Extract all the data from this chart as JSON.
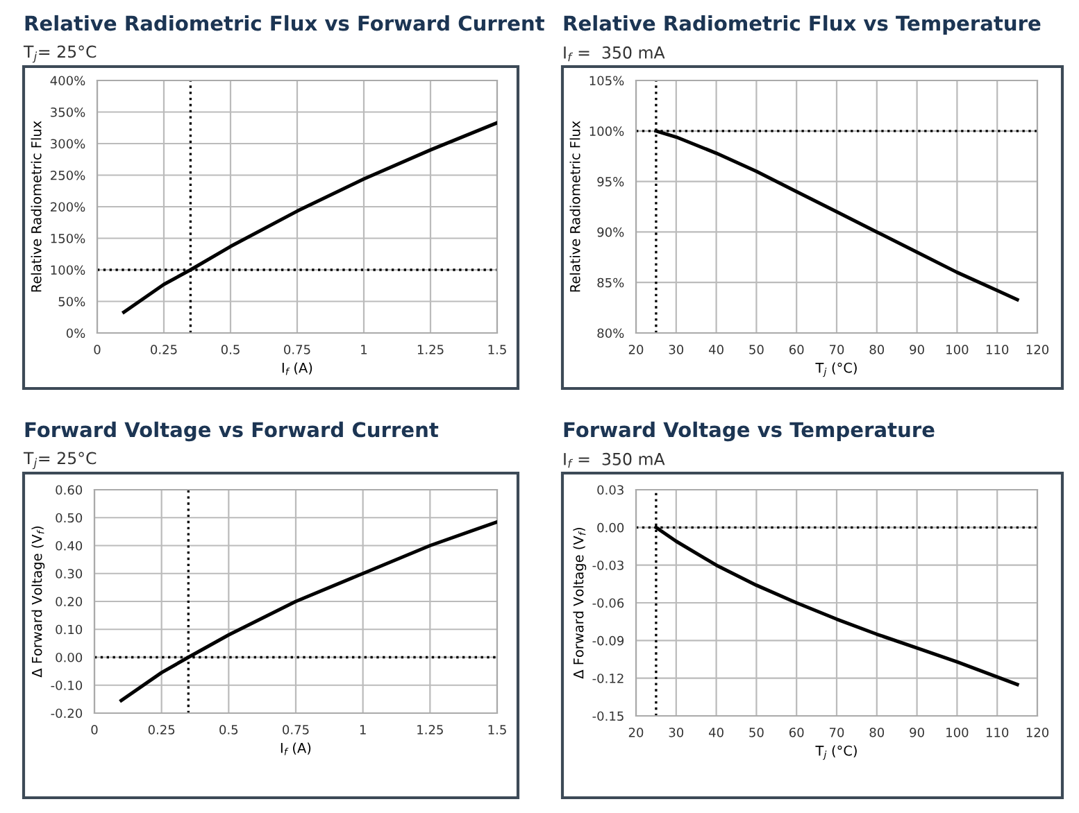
{
  "chart_data": [
    {
      "type": "line",
      "title": "Relative Radiometric Flux vs Forward Current",
      "subtitle": "T$_{j}$= 25°C",
      "xlabel": "I$_{f}$ (A)",
      "ylabel": "Relative Radiometric Flux",
      "x": [
        0.1,
        0.25,
        0.35,
        0.5,
        0.75,
        1.0,
        1.25,
        1.5
      ],
      "series": [
        {
          "color": "#000000",
          "values": [
            33,
            77,
            100,
            137,
            193,
            244,
            290,
            333
          ]
        }
      ],
      "xlim": [
        0,
        1.5
      ],
      "xticks": [
        0,
        0.25,
        0.5,
        0.75,
        1,
        1.25,
        1.5
      ],
      "ylim": [
        0,
        400
      ],
      "yticks": [
        {
          "value": 0,
          "label": "0%"
        },
        {
          "value": 50,
          "label": "50%"
        },
        {
          "value": 100,
          "label": "100%"
        },
        {
          "value": 150,
          "label": "150%"
        },
        {
          "value": 200,
          "label": "200%"
        },
        {
          "value": 250,
          "label": "250%"
        },
        {
          "value": 300,
          "label": "300%"
        },
        {
          "value": 350,
          "label": "350%"
        },
        {
          "value": 400,
          "label": "400%"
        }
      ],
      "ref_lines": [
        {
          "axis": "x",
          "value": 0.35,
          "color": "#000000",
          "line_style": "dotted"
        },
        {
          "axis": "y",
          "value": 100,
          "color": "#000000",
          "line_style": "dotted"
        }
      ],
      "grid": true,
      "legend": false,
      "marker": "none",
      "line_style": "solid"
    },
    {
      "type": "line",
      "title": "Relative Radiometric Flux vs Temperature",
      "subtitle": "I$_{f}$ =  350 mA",
      "xlabel": "T$_{j}$ (°C)",
      "ylabel": "Relative Radiometric Flux",
      "x": [
        25,
        30,
        40,
        50,
        60,
        70,
        80,
        90,
        100,
        110,
        115
      ],
      "series": [
        {
          "color": "#000000",
          "values": [
            100,
            99.4,
            97.8,
            96,
            94,
            92,
            90,
            88,
            86,
            84.2,
            83.3
          ]
        }
      ],
      "xlim": [
        20,
        120
      ],
      "xticks": [
        20,
        30,
        40,
        50,
        60,
        70,
        80,
        90,
        100,
        110,
        120
      ],
      "ylim": [
        80,
        105
      ],
      "yticks": [
        {
          "value": 80,
          "label": "80%"
        },
        {
          "value": 85,
          "label": "85%"
        },
        {
          "value": 90,
          "label": "90%"
        },
        {
          "value": 95,
          "label": "95%"
        },
        {
          "value": 100,
          "label": "100%"
        },
        {
          "value": 105,
          "label": "105%"
        }
      ],
      "ref_lines": [
        {
          "axis": "x",
          "value": 25,
          "color": "#000000",
          "line_style": "dotted"
        },
        {
          "axis": "y",
          "value": 100,
          "color": "#000000",
          "line_style": "dotted"
        }
      ],
      "grid": true,
      "legend": false,
      "marker": "none",
      "line_style": "solid"
    },
    {
      "type": "line",
      "title": "Forward Voltage vs Forward Current",
      "subtitle": "T$_{j}$= 25°C",
      "xlabel": "I$_{f}$ (A)",
      "ylabel": "Δ Forward Voltage (V$_{f}$)",
      "x": [
        0.1,
        0.25,
        0.35,
        0.5,
        0.75,
        1.0,
        1.25,
        1.5
      ],
      "series": [
        {
          "color": "#000000",
          "values": [
            -0.155,
            -0.055,
            0,
            0.08,
            0.2,
            0.3,
            0.4,
            0.485
          ]
        }
      ],
      "xlim": [
        0,
        1.5
      ],
      "xticks": [
        0,
        0.25,
        0.5,
        0.75,
        1,
        1.25,
        1.5
      ],
      "ylim": [
        -0.2,
        0.6
      ],
      "yticks": [
        {
          "value": -0.2,
          "label": "-0.20"
        },
        {
          "value": -0.1,
          "label": "-0.10"
        },
        {
          "value": 0,
          "label": "0.00"
        },
        {
          "value": 0.1,
          "label": "0.10"
        },
        {
          "value": 0.2,
          "label": "0.20"
        },
        {
          "value": 0.3,
          "label": "0.30"
        },
        {
          "value": 0.4,
          "label": "0.40"
        },
        {
          "value": 0.5,
          "label": "0.50"
        },
        {
          "value": 0.6,
          "label": "0.60"
        }
      ],
      "ref_lines": [
        {
          "axis": "x",
          "value": 0.35,
          "color": "#000000",
          "line_style": "dotted"
        },
        {
          "axis": "y",
          "value": 0,
          "color": "#000000",
          "line_style": "dotted"
        }
      ],
      "grid": true,
      "legend": false,
      "marker": "none",
      "line_style": "solid"
    },
    {
      "type": "line",
      "title": "Forward Voltage vs Temperature",
      "subtitle": "I$_{f}$ =  350 mA",
      "xlabel": "T$_{j}$ (°C)",
      "ylabel": "Δ Forward Voltage (V$_{f}$)",
      "x": [
        25,
        30,
        40,
        50,
        60,
        70,
        80,
        90,
        100,
        110,
        115
      ],
      "series": [
        {
          "color": "#000000",
          "values": [
            0,
            -0.011,
            -0.03,
            -0.046,
            -0.06,
            -0.073,
            -0.085,
            -0.096,
            -0.107,
            -0.119,
            -0.125
          ]
        }
      ],
      "xlim": [
        20,
        120
      ],
      "xticks": [
        20,
        30,
        40,
        50,
        60,
        70,
        80,
        90,
        100,
        110,
        120
      ],
      "ylim": [
        -0.15,
        0.03
      ],
      "yticks": [
        {
          "value": -0.15,
          "label": "-0.15"
        },
        {
          "value": -0.12,
          "label": "-0.12"
        },
        {
          "value": -0.09,
          "label": "-0.09"
        },
        {
          "value": -0.06,
          "label": "-0.06"
        },
        {
          "value": -0.03,
          "label": "-0.03"
        },
        {
          "value": 0,
          "label": "0.00"
        },
        {
          "value": 0.03,
          "label": "0.03"
        }
      ],
      "ref_lines": [
        {
          "axis": "x",
          "value": 25,
          "color": "#000000",
          "line_style": "dotted"
        },
        {
          "axis": "y",
          "value": 0,
          "color": "#000000",
          "line_style": "dotted"
        }
      ],
      "grid": true,
      "legend": false,
      "marker": "none",
      "line_style": "solid"
    }
  ]
}
